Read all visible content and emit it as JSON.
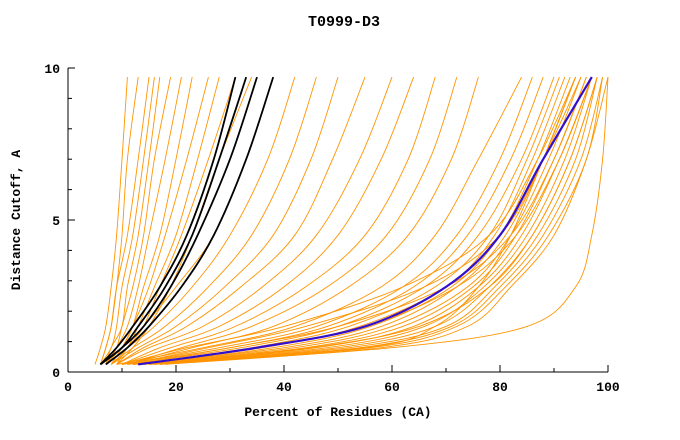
{
  "chart_data": {
    "type": "line",
    "title": "T0999-D3",
    "xlabel": "Percent of Residues (CA)",
    "ylabel": "Distance Cutoff, A",
    "xlim": [
      0,
      100
    ],
    "ylim": [
      0,
      10
    ],
    "x_ticks_major": [
      0,
      20,
      40,
      60,
      80,
      100
    ],
    "x_ticks_minor": [
      10,
      30,
      50,
      70,
      90
    ],
    "y_ticks_major": [
      0,
      5,
      10
    ],
    "y_ticks_minor": [
      1,
      2,
      3,
      4,
      6,
      7,
      8,
      9
    ],
    "grid": "off",
    "legend": "none",
    "colors": {
      "orange": "#FF9400",
      "black": "#000000",
      "blue": "#3311CC",
      "axis": "#000000",
      "background": "#FFFFFF"
    },
    "y_grid": [
      0.25,
      0.8,
      1.5,
      2.8,
      4.5,
      7.0,
      9.7
    ],
    "series": {
      "blue": [
        13,
        35,
        55,
        70,
        80,
        88,
        97
      ],
      "black": [
        [
          6,
          9,
          12,
          17,
          22,
          27,
          31
        ],
        [
          6,
          10,
          14,
          19,
          24,
          30,
          35
        ],
        [
          7,
          11,
          15,
          21,
          27,
          33,
          38
        ],
        [
          6,
          10,
          13,
          18,
          23,
          28,
          33
        ]
      ],
      "orange": [
        [
          5,
          6,
          7,
          8,
          9,
          10,
          11
        ],
        [
          6,
          7,
          8,
          9,
          10,
          11,
          13
        ],
        [
          6,
          7,
          8,
          9,
          11,
          13,
          15
        ],
        [
          6,
          8,
          9,
          10,
          12,
          14,
          16
        ],
        [
          7,
          8,
          10,
          11,
          13,
          15,
          17
        ],
        [
          7,
          9,
          10,
          12,
          14,
          16,
          19
        ],
        [
          7,
          9,
          11,
          13,
          15,
          18,
          21
        ],
        [
          8,
          10,
          12,
          14,
          17,
          20,
          23
        ],
        [
          8,
          10,
          12,
          15,
          18,
          22,
          26
        ],
        [
          8,
          11,
          13,
          16,
          20,
          24,
          28
        ],
        [
          9,
          11,
          14,
          17,
          21,
          26,
          31
        ],
        [
          9,
          12,
          15,
          19,
          23,
          28,
          34
        ],
        [
          7,
          10,
          14,
          20,
          27,
          33,
          38
        ],
        [
          7,
          11,
          16,
          23,
          30,
          37,
          42
        ],
        [
          8,
          12,
          18,
          26,
          34,
          41,
          46
        ],
        [
          8,
          13,
          20,
          29,
          38,
          45,
          50
        ],
        [
          9,
          14,
          22,
          32,
          42,
          49,
          55
        ],
        [
          9,
          15,
          25,
          36,
          46,
          54,
          60
        ],
        [
          10,
          17,
          28,
          40,
          50,
          58,
          64
        ],
        [
          10,
          19,
          31,
          44,
          55,
          63,
          68
        ],
        [
          11,
          21,
          34,
          48,
          59,
          67,
          72
        ],
        [
          11,
          23,
          38,
          52,
          63,
          71,
          76
        ],
        [
          9,
          25,
          42,
          58,
          68,
          76,
          84
        ],
        [
          10,
          28,
          46,
          62,
          72,
          80,
          86
        ],
        [
          10,
          30,
          48,
          64,
          74,
          82,
          88
        ],
        [
          11,
          32,
          50,
          66,
          76,
          84,
          90
        ],
        [
          12,
          34,
          52,
          68,
          78,
          85,
          91
        ],
        [
          12,
          36,
          54,
          70,
          79,
          86,
          92
        ],
        [
          13,
          38,
          56,
          71,
          80,
          87,
          93
        ],
        [
          13,
          40,
          58,
          72,
          81,
          88,
          94
        ],
        [
          14,
          42,
          60,
          74,
          82,
          89,
          95
        ],
        [
          14,
          44,
          62,
          75,
          83,
          90,
          96
        ],
        [
          15,
          46,
          64,
          76,
          84,
          91,
          97
        ],
        [
          15,
          48,
          66,
          77,
          85,
          92,
          97
        ],
        [
          16,
          50,
          68,
          78,
          86,
          93,
          98
        ],
        [
          16,
          52,
          70,
          79,
          87,
          94,
          98
        ],
        [
          17,
          54,
          71,
          80,
          88,
          95,
          99
        ],
        [
          17,
          56,
          72,
          81,
          89,
          96,
          99
        ],
        [
          18,
          58,
          74,
          82,
          90,
          96,
          100
        ],
        [
          12,
          30,
          50,
          70,
          82,
          90,
          96
        ],
        [
          11,
          26,
          44,
          66,
          80,
          88,
          95
        ],
        [
          10,
          22,
          40,
          62,
          78,
          87,
          94
        ],
        [
          13,
          35,
          55,
          72,
          83,
          91,
          97
        ],
        [
          14,
          45,
          65,
          78,
          86,
          93,
          98
        ],
        [
          15,
          60,
          85,
          94,
          97,
          99,
          100
        ],
        [
          12,
          55,
          68,
          76,
          82,
          88,
          94
        ]
      ]
    }
  }
}
